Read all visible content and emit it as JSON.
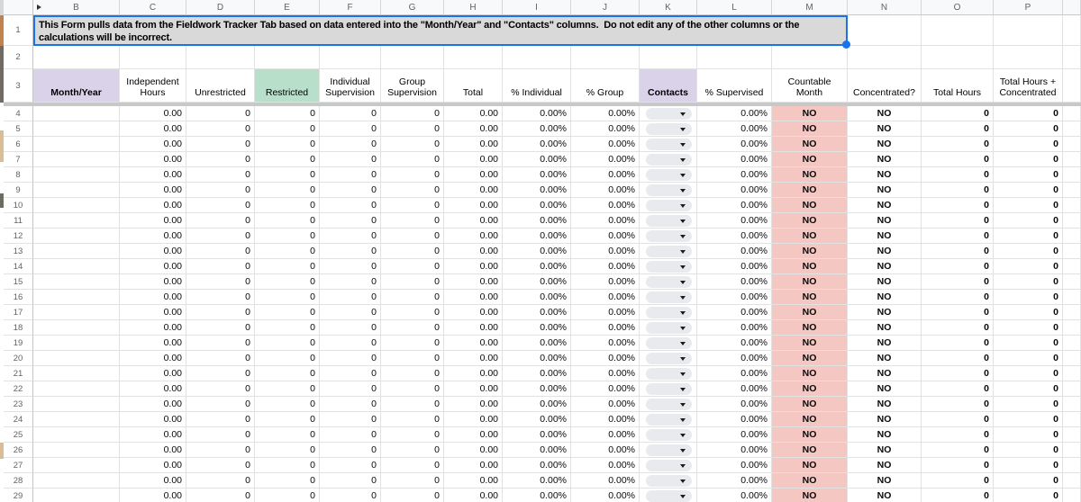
{
  "banner": {
    "text": "This Form pulls data from the Fieldwork Tracker Tab based on data entered into the \"Month/Year\" and \"Contacts\" columns.  Do not edit any of the other columns or the calculations will be incorrect.",
    "merged_range_columns": "B-M"
  },
  "column_letters": [
    "B",
    "C",
    "D",
    "E",
    "F",
    "G",
    "H",
    "I",
    "J",
    "K",
    "L",
    "M",
    "N",
    "O",
    "P"
  ],
  "frozen_row_numbers": [
    "1",
    "2",
    "3"
  ],
  "data_rows": {
    "first": 4,
    "last": 29
  },
  "columns": [
    {
      "header": "Month/Year",
      "value": "",
      "header_bg": "purple",
      "header_bold": true,
      "align": "right"
    },
    {
      "header": "Independent Hours",
      "value": "0.00",
      "align": "right"
    },
    {
      "header": "Unrestricted",
      "value": "0",
      "align": "right"
    },
    {
      "header": "Restricted",
      "value": "0",
      "header_bg": "green",
      "align": "right"
    },
    {
      "header": "Individual Supervision",
      "value": "0",
      "align": "right"
    },
    {
      "header": "Group Supervision",
      "value": "0",
      "align": "right"
    },
    {
      "header": "Total",
      "value": "0.00",
      "align": "right"
    },
    {
      "header": "% Individual",
      "value": "0.00%",
      "align": "right"
    },
    {
      "header": "% Group",
      "value": "0.00%",
      "align": "right"
    },
    {
      "header": "Contacts",
      "value": "",
      "header_bg": "purple",
      "header_bold": true,
      "cell_widget": "dropdown"
    },
    {
      "header": "% Supervised",
      "value": "0.00%",
      "align": "right"
    },
    {
      "header": "Countable Month",
      "value": "NO",
      "align": "center",
      "value_bold": true,
      "cell_bg": "pink"
    },
    {
      "header": "Concentrated?",
      "value": "NO",
      "align": "center",
      "value_bold": true
    },
    {
      "header": "Total Hours",
      "value": "0",
      "align": "right",
      "value_bold": true
    },
    {
      "header": "Total Hours + Concentrated",
      "value": "0",
      "align": "right",
      "value_bold": true
    }
  ],
  "colors": {
    "accent": "#1a73e8",
    "banner_bg": "#d9d9d9",
    "purple_header": "#d9d2e9",
    "green_header": "#b7dfc9",
    "pink_cell": "#f4c7c3",
    "dropdown_pill": "#e8eaee",
    "header_bg": "#f8f9fa",
    "gridline": "#e2e2e2"
  }
}
